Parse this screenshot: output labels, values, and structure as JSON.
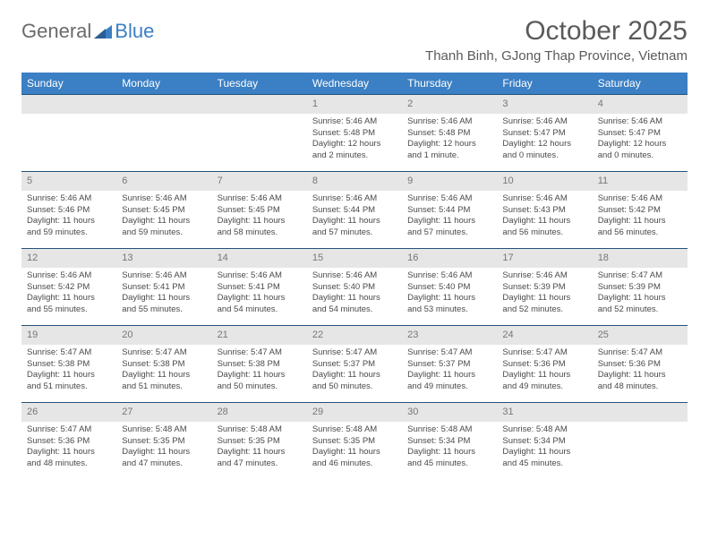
{
  "brand": {
    "part1": "General",
    "part2": "Blue"
  },
  "title": "October 2025",
  "location": "Thanh Binh, GJong Thap Province, Vietnam",
  "colors": {
    "header_bg": "#3b7fc4",
    "header_text": "#ffffff",
    "daynum_bg": "#e6e6e6",
    "daynum_text": "#777777",
    "body_text": "#4a4a4a",
    "title_text": "#5a5a5a",
    "rule": "#24527a"
  },
  "fonts": {
    "title_size_pt": 22,
    "location_size_pt": 11,
    "header_size_pt": 9,
    "cell_size_pt": 7
  },
  "day_headers": [
    "Sunday",
    "Monday",
    "Tuesday",
    "Wednesday",
    "Thursday",
    "Friday",
    "Saturday"
  ],
  "weeks": [
    [
      {
        "empty": true
      },
      {
        "empty": true
      },
      {
        "empty": true
      },
      {
        "day": "1",
        "sunrise": "5:46 AM",
        "sunset": "5:48 PM",
        "daylight": "12 hours and 2 minutes."
      },
      {
        "day": "2",
        "sunrise": "5:46 AM",
        "sunset": "5:48 PM",
        "daylight": "12 hours and 1 minute."
      },
      {
        "day": "3",
        "sunrise": "5:46 AM",
        "sunset": "5:47 PM",
        "daylight": "12 hours and 0 minutes."
      },
      {
        "day": "4",
        "sunrise": "5:46 AM",
        "sunset": "5:47 PM",
        "daylight": "12 hours and 0 minutes."
      }
    ],
    [
      {
        "day": "5",
        "sunrise": "5:46 AM",
        "sunset": "5:46 PM",
        "daylight": "11 hours and 59 minutes."
      },
      {
        "day": "6",
        "sunrise": "5:46 AM",
        "sunset": "5:45 PM",
        "daylight": "11 hours and 59 minutes."
      },
      {
        "day": "7",
        "sunrise": "5:46 AM",
        "sunset": "5:45 PM",
        "daylight": "11 hours and 58 minutes."
      },
      {
        "day": "8",
        "sunrise": "5:46 AM",
        "sunset": "5:44 PM",
        "daylight": "11 hours and 57 minutes."
      },
      {
        "day": "9",
        "sunrise": "5:46 AM",
        "sunset": "5:44 PM",
        "daylight": "11 hours and 57 minutes."
      },
      {
        "day": "10",
        "sunrise": "5:46 AM",
        "sunset": "5:43 PM",
        "daylight": "11 hours and 56 minutes."
      },
      {
        "day": "11",
        "sunrise": "5:46 AM",
        "sunset": "5:42 PM",
        "daylight": "11 hours and 56 minutes."
      }
    ],
    [
      {
        "day": "12",
        "sunrise": "5:46 AM",
        "sunset": "5:42 PM",
        "daylight": "11 hours and 55 minutes."
      },
      {
        "day": "13",
        "sunrise": "5:46 AM",
        "sunset": "5:41 PM",
        "daylight": "11 hours and 55 minutes."
      },
      {
        "day": "14",
        "sunrise": "5:46 AM",
        "sunset": "5:41 PM",
        "daylight": "11 hours and 54 minutes."
      },
      {
        "day": "15",
        "sunrise": "5:46 AM",
        "sunset": "5:40 PM",
        "daylight": "11 hours and 54 minutes."
      },
      {
        "day": "16",
        "sunrise": "5:46 AM",
        "sunset": "5:40 PM",
        "daylight": "11 hours and 53 minutes."
      },
      {
        "day": "17",
        "sunrise": "5:46 AM",
        "sunset": "5:39 PM",
        "daylight": "11 hours and 52 minutes."
      },
      {
        "day": "18",
        "sunrise": "5:47 AM",
        "sunset": "5:39 PM",
        "daylight": "11 hours and 52 minutes."
      }
    ],
    [
      {
        "day": "19",
        "sunrise": "5:47 AM",
        "sunset": "5:38 PM",
        "daylight": "11 hours and 51 minutes."
      },
      {
        "day": "20",
        "sunrise": "5:47 AM",
        "sunset": "5:38 PM",
        "daylight": "11 hours and 51 minutes."
      },
      {
        "day": "21",
        "sunrise": "5:47 AM",
        "sunset": "5:38 PM",
        "daylight": "11 hours and 50 minutes."
      },
      {
        "day": "22",
        "sunrise": "5:47 AM",
        "sunset": "5:37 PM",
        "daylight": "11 hours and 50 minutes."
      },
      {
        "day": "23",
        "sunrise": "5:47 AM",
        "sunset": "5:37 PM",
        "daylight": "11 hours and 49 minutes."
      },
      {
        "day": "24",
        "sunrise": "5:47 AM",
        "sunset": "5:36 PM",
        "daylight": "11 hours and 49 minutes."
      },
      {
        "day": "25",
        "sunrise": "5:47 AM",
        "sunset": "5:36 PM",
        "daylight": "11 hours and 48 minutes."
      }
    ],
    [
      {
        "day": "26",
        "sunrise": "5:47 AM",
        "sunset": "5:36 PM",
        "daylight": "11 hours and 48 minutes."
      },
      {
        "day": "27",
        "sunrise": "5:48 AM",
        "sunset": "5:35 PM",
        "daylight": "11 hours and 47 minutes."
      },
      {
        "day": "28",
        "sunrise": "5:48 AM",
        "sunset": "5:35 PM",
        "daylight": "11 hours and 47 minutes."
      },
      {
        "day": "29",
        "sunrise": "5:48 AM",
        "sunset": "5:35 PM",
        "daylight": "11 hours and 46 minutes."
      },
      {
        "day": "30",
        "sunrise": "5:48 AM",
        "sunset": "5:34 PM",
        "daylight": "11 hours and 45 minutes."
      },
      {
        "day": "31",
        "sunrise": "5:48 AM",
        "sunset": "5:34 PM",
        "daylight": "11 hours and 45 minutes."
      },
      {
        "empty": true
      }
    ]
  ],
  "labels": {
    "sunrise": "Sunrise: ",
    "sunset": "Sunset: ",
    "daylight": "Daylight: "
  }
}
